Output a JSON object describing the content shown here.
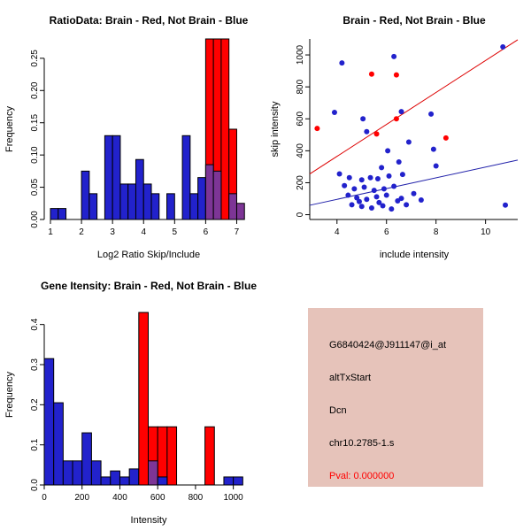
{
  "colors": {
    "blue": "#2222cc",
    "red": "#ff0000",
    "purple": "#7d3596",
    "line_red": "#dd0000",
    "line_blue": "#2222aa",
    "info_bg": "#e6c3ba",
    "pval": "#ff0000"
  },
  "chart_data": [
    {
      "id": "ratio-hist",
      "type": "bar",
      "title": "RatioData: Brain - Red, Not Brain - Blue",
      "xlabel": "Log2 Ratio Skip/Include",
      "ylabel": "Frequency",
      "xlim": [
        0.8,
        7.5
      ],
      "ylim": [
        0,
        0.28
      ],
      "bin_width": 0.25,
      "axis_span": "ticks",
      "xticks": [
        [
          1,
          "1"
        ],
        [
          2,
          "2"
        ],
        [
          3,
          "3"
        ],
        [
          4,
          "4"
        ],
        [
          5,
          "5"
        ],
        [
          6,
          "6"
        ],
        [
          7,
          "7"
        ]
      ],
      "yticks": [
        [
          0,
          "0.00"
        ],
        [
          0.05,
          "0.05"
        ],
        [
          0.1,
          "0.10"
        ],
        [
          0.15,
          "0.15"
        ],
        [
          0.2,
          "0.20"
        ],
        [
          0.25,
          "0.25"
        ]
      ],
      "bars": [
        {
          "x": 1.0,
          "h": 0.017,
          "color": "blue"
        },
        {
          "x": 1.25,
          "h": 0.017,
          "color": "blue"
        },
        {
          "x": 2.0,
          "h": 0.075,
          "color": "blue"
        },
        {
          "x": 2.25,
          "h": 0.04,
          "color": "blue"
        },
        {
          "x": 2.75,
          "h": 0.13,
          "color": "blue"
        },
        {
          "x": 3.0,
          "h": 0.13,
          "color": "blue"
        },
        {
          "x": 3.25,
          "h": 0.055,
          "color": "blue"
        },
        {
          "x": 3.5,
          "h": 0.055,
          "color": "blue"
        },
        {
          "x": 3.75,
          "h": 0.093,
          "color": "blue"
        },
        {
          "x": 4.0,
          "h": 0.055,
          "color": "blue"
        },
        {
          "x": 4.25,
          "h": 0.04,
          "color": "blue"
        },
        {
          "x": 4.75,
          "h": 0.04,
          "color": "blue"
        },
        {
          "x": 5.25,
          "h": 0.13,
          "color": "blue"
        },
        {
          "x": 5.5,
          "h": 0.04,
          "color": "blue"
        },
        {
          "x": 5.75,
          "h": 0.065,
          "color": "blue"
        },
        {
          "x": 6.0,
          "h": 0.28,
          "color": "red"
        },
        {
          "x": 6.25,
          "h": 0.28,
          "color": "red"
        },
        {
          "x": 6.5,
          "h": 0.28,
          "color": "red"
        },
        {
          "x": 6.75,
          "h": 0.14,
          "color": "red"
        },
        {
          "x": 6.0,
          "h": 0.085,
          "color": "purple"
        },
        {
          "x": 6.25,
          "h": 0.075,
          "color": "purple"
        },
        {
          "x": 6.75,
          "h": 0.04,
          "color": "purple"
        },
        {
          "x": 7.0,
          "h": 0.025,
          "color": "purple"
        }
      ]
    },
    {
      "id": "scatter",
      "type": "scatter",
      "title": "Brain - Red, Not Brain - Blue",
      "xlabel": "include intensity",
      "ylabel": "skip intensity",
      "xlim": [
        2.9,
        11.3
      ],
      "ylim": [
        -30,
        1100
      ],
      "axis_span": "full",
      "xticks": [
        [
          4,
          "4"
        ],
        [
          6,
          "6"
        ],
        [
          8,
          "8"
        ],
        [
          10,
          "10"
        ]
      ],
      "yticks": [
        [
          0,
          "0"
        ],
        [
          200,
          "200"
        ],
        [
          400,
          "400"
        ],
        [
          600,
          "600"
        ],
        [
          800,
          "800"
        ],
        [
          1000,
          "1000"
        ]
      ],
      "series": [
        {
          "name": "brain",
          "color": "red",
          "points": [
            [
              3.2,
              540
            ],
            [
              5.4,
              880
            ],
            [
              6.4,
              875
            ],
            [
              5.6,
              505
            ],
            [
              6.4,
              600
            ],
            [
              8.4,
              480
            ]
          ]
        },
        {
          "name": "not-brain",
          "color": "blue",
          "points": [
            [
              4.2,
              950
            ],
            [
              6.3,
              990
            ],
            [
              10.7,
              1050
            ],
            [
              3.9,
              640
            ],
            [
              5.05,
              600
            ],
            [
              6.6,
              645
            ],
            [
              7.8,
              630
            ],
            [
              5.2,
              520
            ],
            [
              6.9,
              455
            ],
            [
              7.9,
              410
            ],
            [
              6.05,
              400
            ],
            [
              8.0,
              305
            ],
            [
              6.5,
              330
            ],
            [
              5.8,
              295
            ],
            [
              4.1,
              255
            ],
            [
              4.5,
              232
            ],
            [
              5.0,
              218
            ],
            [
              5.35,
              232
            ],
            [
              5.65,
              225
            ],
            [
              6.1,
              242
            ],
            [
              6.65,
              252
            ],
            [
              4.3,
              182
            ],
            [
              4.7,
              162
            ],
            [
              5.1,
              172
            ],
            [
              5.5,
              152
            ],
            [
              5.9,
              162
            ],
            [
              6.3,
              178
            ],
            [
              4.45,
              122
            ],
            [
              4.8,
              106
            ],
            [
              5.2,
              96
            ],
            [
              5.6,
              112
            ],
            [
              6.0,
              122
            ],
            [
              6.6,
              102
            ],
            [
              7.1,
              132
            ],
            [
              4.6,
              62
            ],
            [
              5.0,
              52
            ],
            [
              5.4,
              42
            ],
            [
              5.85,
              56
            ],
            [
              6.2,
              36
            ],
            [
              6.8,
              62
            ],
            [
              7.4,
              92
            ],
            [
              10.8,
              60
            ],
            [
              4.9,
              82
            ],
            [
              5.7,
              76
            ],
            [
              6.45,
              86
            ]
          ]
        }
      ],
      "lines": [
        {
          "color": "line_red",
          "x1": 2.9,
          "y1": 255,
          "x2": 11.3,
          "y2": 1095
        },
        {
          "color": "line_blue",
          "x1": 2.9,
          "y1": 59,
          "x2": 11.3,
          "y2": 342
        }
      ]
    },
    {
      "id": "gene-hist",
      "type": "bar",
      "title": "Gene Itensity: Brain - Red, Not Brain - Blue",
      "xlabel": "Intensity",
      "ylabel": "Frequency",
      "xlim": [
        0,
        1100
      ],
      "ylim": [
        0,
        0.45
      ],
      "bin_width": 50,
      "axis_span": "ticks",
      "xticks": [
        [
          0,
          "0"
        ],
        [
          200,
          "200"
        ],
        [
          400,
          "400"
        ],
        [
          600,
          "600"
        ],
        [
          800,
          "800"
        ],
        [
          1000,
          "1000"
        ]
      ],
      "yticks": [
        [
          0,
          "0.0"
        ],
        [
          0.1,
          "0.1"
        ],
        [
          0.2,
          "0.2"
        ],
        [
          0.3,
          "0.3"
        ],
        [
          0.4,
          "0.4"
        ]
      ],
      "bars": [
        {
          "x": 0,
          "h": 0.315,
          "color": "blue"
        },
        {
          "x": 50,
          "h": 0.205,
          "color": "blue"
        },
        {
          "x": 100,
          "h": 0.06,
          "color": "blue"
        },
        {
          "x": 150,
          "h": 0.06,
          "color": "blue"
        },
        {
          "x": 200,
          "h": 0.13,
          "color": "blue"
        },
        {
          "x": 250,
          "h": 0.06,
          "color": "blue"
        },
        {
          "x": 300,
          "h": 0.02,
          "color": "blue"
        },
        {
          "x": 350,
          "h": 0.035,
          "color": "blue"
        },
        {
          "x": 400,
          "h": 0.02,
          "color": "blue"
        },
        {
          "x": 450,
          "h": 0.04,
          "color": "blue"
        },
        {
          "x": 500,
          "h": 0.43,
          "color": "red"
        },
        {
          "x": 550,
          "h": 0.145,
          "color": "red"
        },
        {
          "x": 600,
          "h": 0.145,
          "color": "red"
        },
        {
          "x": 650,
          "h": 0.145,
          "color": "red"
        },
        {
          "x": 850,
          "h": 0.145,
          "color": "red"
        },
        {
          "x": 550,
          "h": 0.06,
          "color": "purple"
        },
        {
          "x": 600,
          "h": 0.02,
          "color": "blue"
        },
        {
          "x": 950,
          "h": 0.02,
          "color": "blue"
        },
        {
          "x": 1000,
          "h": 0.02,
          "color": "blue"
        }
      ]
    }
  ],
  "info_box": {
    "lines": [
      "G6840424@J911147@i_at",
      "altTxStart",
      "Dcn",
      "chr10.2785-1.s"
    ],
    "pval": "Pval: 0.000000"
  }
}
